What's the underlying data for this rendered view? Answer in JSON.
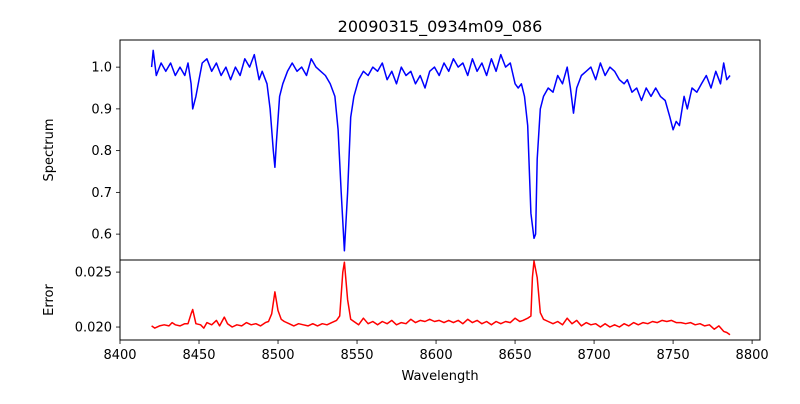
{
  "chart_data": [
    {
      "type": "line",
      "title": "20090315_0934m09_086",
      "xlabel": "",
      "ylabel": "Spectrum",
      "xlim": [
        8400,
        8805
      ],
      "ylim": [
        0.538,
        1.065
      ],
      "yticks": [
        0.6,
        0.7,
        0.8,
        0.9,
        1.0
      ],
      "ytick_labels": [
        "0.6",
        "0.7",
        "0.8",
        "0.9",
        "1.0"
      ],
      "grid": false,
      "series": [
        {
          "name": "Spectrum",
          "color": "#0000ff",
          "x": [
            8420,
            8421,
            8423,
            8426,
            8429,
            8432,
            8435,
            8438,
            8441,
            8443,
            8445,
            8446,
            8448,
            8450,
            8452,
            8455,
            8458,
            8461,
            8464,
            8467,
            8470,
            8473,
            8476,
            8479,
            8482,
            8485,
            8488,
            8490,
            8493,
            8495,
            8497,
            8498,
            8499,
            8501,
            8503,
            8506,
            8509,
            8512,
            8515,
            8518,
            8521,
            8524,
            8527,
            8530,
            8533,
            8536,
            8538,
            8540,
            8542,
            8544,
            8546,
            8548,
            8551,
            8554,
            8557,
            8560,
            8563,
            8566,
            8569,
            8572,
            8575,
            8578,
            8581,
            8584,
            8587,
            8590,
            8593,
            8596,
            8599,
            8602,
            8605,
            8608,
            8611,
            8614,
            8617,
            8620,
            8623,
            8626,
            8629,
            8632,
            8635,
            8638,
            8641,
            8644,
            8647,
            8650,
            8652,
            8654,
            8656,
            8658,
            8660,
            8662,
            8663,
            8664,
            8666,
            8668,
            8671,
            8674,
            8677,
            8680,
            8683,
            8685,
            8687,
            8689,
            8692,
            8695,
            8698,
            8701,
            8704,
            8707,
            8710,
            8713,
            8716,
            8719,
            8721,
            8724,
            8727,
            8730,
            8733,
            8736,
            8739,
            8742,
            8745,
            8748,
            8750,
            8752,
            8754,
            8757,
            8759,
            8762,
            8765,
            8768,
            8771,
            8774,
            8777,
            8780,
            8782,
            8784,
            8786
          ],
          "y": [
            1.0,
            1.04,
            0.98,
            1.01,
            0.99,
            1.01,
            0.98,
            1.0,
            0.98,
            1.01,
            0.96,
            0.9,
            0.93,
            0.97,
            1.01,
            1.02,
            0.99,
            1.01,
            0.98,
            1.0,
            0.97,
            1.0,
            0.98,
            1.02,
            1.0,
            1.03,
            0.97,
            0.99,
            0.96,
            0.9,
            0.8,
            0.76,
            0.82,
            0.93,
            0.96,
            0.99,
            1.01,
            0.99,
            1.0,
            0.98,
            1.02,
            1.0,
            0.99,
            0.98,
            0.96,
            0.93,
            0.85,
            0.7,
            0.56,
            0.7,
            0.88,
            0.93,
            0.97,
            0.99,
            0.98,
            1.0,
            0.99,
            1.01,
            0.97,
            0.99,
            0.96,
            1.0,
            0.98,
            0.99,
            0.96,
            0.98,
            0.95,
            0.99,
            1.0,
            0.98,
            1.01,
            0.99,
            1.02,
            1.0,
            1.01,
            0.98,
            1.02,
            0.99,
            1.01,
            0.98,
            1.02,
            0.99,
            1.03,
            1.0,
            1.01,
            0.96,
            0.95,
            0.96,
            0.93,
            0.86,
            0.65,
            0.59,
            0.6,
            0.78,
            0.9,
            0.93,
            0.95,
            0.94,
            0.98,
            0.96,
            1.0,
            0.95,
            0.89,
            0.95,
            0.98,
            0.99,
            1.0,
            0.97,
            1.01,
            0.98,
            1.0,
            0.99,
            0.97,
            0.96,
            0.97,
            0.94,
            0.95,
            0.92,
            0.95,
            0.93,
            0.95,
            0.93,
            0.92,
            0.88,
            0.85,
            0.87,
            0.86,
            0.93,
            0.9,
            0.95,
            0.94,
            0.96,
            0.98,
            0.95,
            0.99,
            0.96,
            1.01,
            0.97,
            0.98
          ]
        }
      ]
    },
    {
      "type": "line",
      "title": "",
      "xlabel": "Wavelength",
      "ylabel": "Error",
      "xlim": [
        8400,
        8805
      ],
      "ylim": [
        0.01882,
        0.0261
      ],
      "xticks": [
        8400,
        8450,
        8500,
        8550,
        8600,
        8650,
        8700,
        8750,
        8800
      ],
      "xtick_labels": [
        "8400",
        "8450",
        "8500",
        "8550",
        "8600",
        "8650",
        "8700",
        "8750",
        "8800"
      ],
      "yticks": [
        0.02,
        0.025
      ],
      "ytick_labels": [
        "0.020",
        "0.025"
      ],
      "grid": false,
      "series": [
        {
          "name": "Error",
          "color": "#ff0000",
          "x": [
            8420,
            8422,
            8425,
            8428,
            8431,
            8433,
            8435,
            8438,
            8441,
            8443,
            8445,
            8446,
            8448,
            8451,
            8453,
            8455,
            8458,
            8461,
            8463,
            8466,
            8468,
            8471,
            8474,
            8477,
            8480,
            8483,
            8486,
            8489,
            8492,
            8494,
            8496,
            8498,
            8500,
            8502,
            8504,
            8507,
            8510,
            8513,
            8516,
            8519,
            8522,
            8525,
            8528,
            8531,
            8534,
            8537,
            8539,
            8541,
            8542,
            8544,
            8546,
            8548,
            8551,
            8554,
            8557,
            8560,
            8563,
            8566,
            8569,
            8572,
            8575,
            8578,
            8581,
            8584,
            8587,
            8590,
            8593,
            8596,
            8599,
            8602,
            8605,
            8608,
            8611,
            8614,
            8617,
            8620,
            8623,
            8626,
            8629,
            8632,
            8635,
            8638,
            8641,
            8644,
            8647,
            8650,
            8653,
            8655,
            8658,
            8660,
            8661,
            8662,
            8664,
            8666,
            8668,
            8671,
            8674,
            8677,
            8680,
            8683,
            8686,
            8689,
            8692,
            8695,
            8698,
            8701,
            8704,
            8707,
            8710,
            8713,
            8716,
            8719,
            8722,
            8725,
            8728,
            8731,
            8734,
            8737,
            8740,
            8743,
            8746,
            8749,
            8752,
            8755,
            8758,
            8761,
            8764,
            8767,
            8770,
            8773,
            8776,
            8779,
            8782,
            8784,
            8786
          ],
          "y": [
            0.0201,
            0.0199,
            0.0201,
            0.0202,
            0.0201,
            0.0204,
            0.0202,
            0.0201,
            0.0203,
            0.0203,
            0.0212,
            0.0216,
            0.0203,
            0.0202,
            0.0199,
            0.0204,
            0.0202,
            0.0206,
            0.0201,
            0.0209,
            0.0203,
            0.02,
            0.0202,
            0.0201,
            0.0204,
            0.0202,
            0.0203,
            0.0201,
            0.0204,
            0.0205,
            0.0212,
            0.0232,
            0.0215,
            0.0207,
            0.0205,
            0.0203,
            0.0201,
            0.0203,
            0.0202,
            0.0201,
            0.0203,
            0.0201,
            0.0203,
            0.0202,
            0.0204,
            0.0206,
            0.021,
            0.025,
            0.0259,
            0.0225,
            0.0207,
            0.0205,
            0.0202,
            0.0208,
            0.0203,
            0.0205,
            0.0202,
            0.0205,
            0.0203,
            0.0206,
            0.0202,
            0.0204,
            0.0203,
            0.0207,
            0.0204,
            0.0206,
            0.0205,
            0.0207,
            0.0205,
            0.0206,
            0.0204,
            0.0206,
            0.0204,
            0.0206,
            0.0203,
            0.0207,
            0.0204,
            0.0206,
            0.0203,
            0.0205,
            0.0202,
            0.0205,
            0.0203,
            0.0205,
            0.0204,
            0.0208,
            0.0205,
            0.0206,
            0.0208,
            0.021,
            0.0245,
            0.026,
            0.0245,
            0.0213,
            0.0207,
            0.0205,
            0.0203,
            0.0205,
            0.0202,
            0.0208,
            0.0203,
            0.0206,
            0.0201,
            0.0204,
            0.0202,
            0.0203,
            0.02,
            0.0203,
            0.02,
            0.0202,
            0.02,
            0.0203,
            0.0201,
            0.0204,
            0.0202,
            0.0204,
            0.0203,
            0.0205,
            0.0204,
            0.0206,
            0.0205,
            0.0206,
            0.0204,
            0.0204,
            0.0203,
            0.0204,
            0.0202,
            0.0203,
            0.0201,
            0.0202,
            0.0198,
            0.0201,
            0.0196,
            0.0195,
            0.0193
          ]
        }
      ]
    }
  ]
}
